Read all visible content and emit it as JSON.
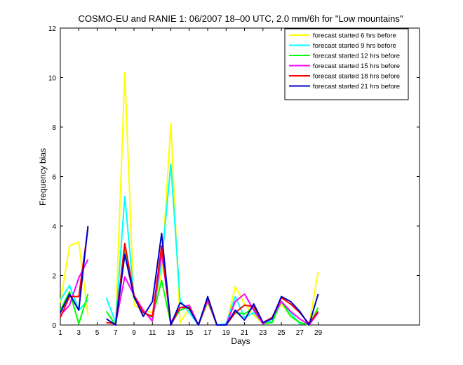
{
  "chart_data": {
    "type": "line",
    "title": "COSMO-EU and RANIE 1: 06/2007 18–00 UTC, 2.0 mm/6h for \"Low mountains\"",
    "xlabel": "Days",
    "ylabel": "Frequency bias",
    "xlim": [
      1,
      40
    ],
    "ylim": [
      0,
      12
    ],
    "xticks": [
      1,
      3,
      5,
      7,
      9,
      11,
      13,
      15,
      17,
      19,
      21,
      23,
      25,
      27,
      29
    ],
    "yticks": [
      0,
      2,
      4,
      6,
      8,
      10,
      12
    ],
    "grid": false,
    "legend_position": "top-right",
    "x": [
      1,
      2,
      3,
      4,
      5,
      6,
      7,
      8,
      9,
      10,
      11,
      12,
      13,
      14,
      15,
      16,
      17,
      18,
      19,
      20,
      21,
      22,
      23,
      24,
      25,
      26,
      27,
      28,
      29
    ],
    "series": [
      {
        "name": "forecast started 6 hrs before",
        "color": "#ffff00",
        "values": [
          0.9,
          3.2,
          3.35,
          0.4,
          null,
          null,
          0.05,
          10.2,
          0.8,
          0.6,
          0.5,
          2.1,
          8.15,
          0.1,
          0.65,
          0.0,
          0.9,
          0.0,
          0.0,
          1.55,
          0.85,
          0.4,
          0.05,
          0.3,
          0.85,
          0.4,
          0.1,
          0.0,
          2.15
        ]
      },
      {
        "name": "forecast started 9 hrs before",
        "color": "#00ffff",
        "values": [
          1.0,
          1.6,
          0.6,
          1.0,
          null,
          1.1,
          0.1,
          5.2,
          1.1,
          0.5,
          0.3,
          2.5,
          6.5,
          1.0,
          0.5,
          0.0,
          1.1,
          0.0,
          0.05,
          1.15,
          0.3,
          0.5,
          0.1,
          0.15,
          0.95,
          0.5,
          0.05,
          0.05,
          0.55
        ]
      },
      {
        "name": "forecast started 12 hrs before",
        "color": "#00ff00",
        "values": [
          0.6,
          1.35,
          0.05,
          1.25,
          null,
          0.55,
          0.0,
          3.1,
          1.1,
          0.5,
          0.3,
          1.8,
          0.05,
          0.6,
          0.75,
          0.0,
          0.95,
          0.0,
          0.0,
          0.5,
          0.45,
          0.7,
          0.05,
          0.1,
          0.95,
          0.35,
          0.1,
          0.0,
          0.7
        ]
      },
      {
        "name": "forecast started 15 hrs before",
        "color": "#ff00ff",
        "values": [
          0.4,
          0.8,
          1.9,
          2.65,
          null,
          null,
          0.05,
          1.95,
          1.2,
          0.6,
          0.15,
          2.95,
          0.1,
          0.7,
          0.8,
          0.0,
          1.0,
          0.0,
          0.0,
          0.95,
          1.25,
          0.6,
          0.05,
          0.3,
          0.95,
          0.55,
          0.25,
          0.0,
          0.5
        ]
      },
      {
        "name": "forecast started 18 hrs before",
        "color": "#ff0000",
        "values": [
          0.3,
          1.15,
          1.15,
          3.9,
          null,
          0.1,
          0.05,
          3.3,
          1.2,
          0.5,
          0.35,
          3.2,
          0.0,
          0.7,
          0.7,
          0.0,
          1.1,
          0.0,
          0.0,
          0.5,
          0.8,
          0.75,
          0.1,
          0.3,
          1.1,
          0.85,
          0.5,
          0.05,
          0.55
        ]
      },
      {
        "name": "forecast started 21 hrs before",
        "color": "#0000cc",
        "values": [
          0.5,
          1.25,
          0.6,
          4.0,
          null,
          0.25,
          0.0,
          2.85,
          1.15,
          0.35,
          0.95,
          3.7,
          0.0,
          0.9,
          0.65,
          0.0,
          1.15,
          0.0,
          0.0,
          0.6,
          0.2,
          0.85,
          0.1,
          0.25,
          1.15,
          0.95,
          0.55,
          0.0,
          1.25
        ]
      }
    ]
  }
}
